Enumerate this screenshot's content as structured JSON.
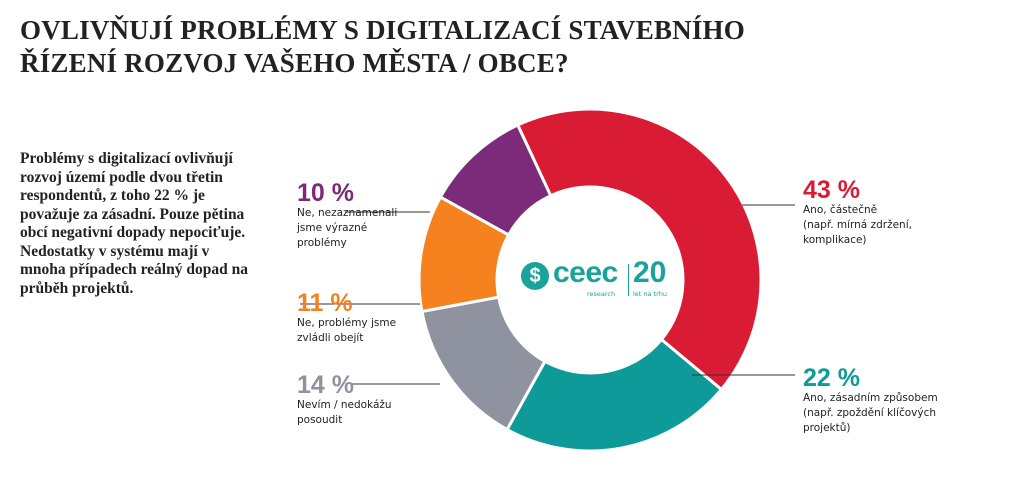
{
  "chart_data": {
    "type": "pie",
    "title": "OVLIVŇUJÍ PROBLÉMY S DIGITALIZACÍ STAVEBNÍHO ŘÍZENÍ ROZVOJ VAŠEHO MĚSTA / OBCE?",
    "title_lines": [
      "OVLIVŇUJÍ PROBLÉMY S DIGITALIZACÍ STAVEBNÍHO",
      "ŘÍZENÍ ROZVOJ VAŠEHO MĚSTA / OBCE?"
    ],
    "summary": "Problémy s digitalizací ovlivňují rozvoj území podle dvou třetin respondentů, z toho 22 % je považuje za zásadní. Pouze pětina obcí negativní dopady nepociťuje. Nedostatky v systému mají v mnoha případech reálný dopad na průběh projektů.",
    "slices": [
      {
        "pct_label": "43 %",
        "value": 43,
        "color": "#d91b34",
        "label_lines": [
          "Ano, částečně",
          "(např. mírná zdržení,",
          "komplikace)"
        ]
      },
      {
        "pct_label": "22 %",
        "value": 22,
        "color": "#0f9a9a",
        "label_lines": [
          "Ano, zásadním způsobem",
          "(např. zpoždění klíčových",
          "projektů)"
        ]
      },
      {
        "pct_label": "14 %",
        "value": 14,
        "color": "#8f929f",
        "label_lines": [
          "Nevím / nedokážu",
          "posoudit"
        ]
      },
      {
        "pct_label": "11 %",
        "value": 11,
        "color": "#f5821f",
        "label_lines": [
          "Ne, problémy jsme",
          "zvládli obejít"
        ]
      },
      {
        "pct_label": "10 %",
        "value": 10,
        "color": "#7b2b7a",
        "label_lines": [
          "Ne, nezaznamenali",
          "jsme výrazné",
          "problémy"
        ]
      }
    ]
  },
  "logo": {
    "symbol": "$",
    "brand": "ceec",
    "sub": "research",
    "number": "20",
    "tagline": "let na trhu",
    "color": "#1aa39a"
  }
}
